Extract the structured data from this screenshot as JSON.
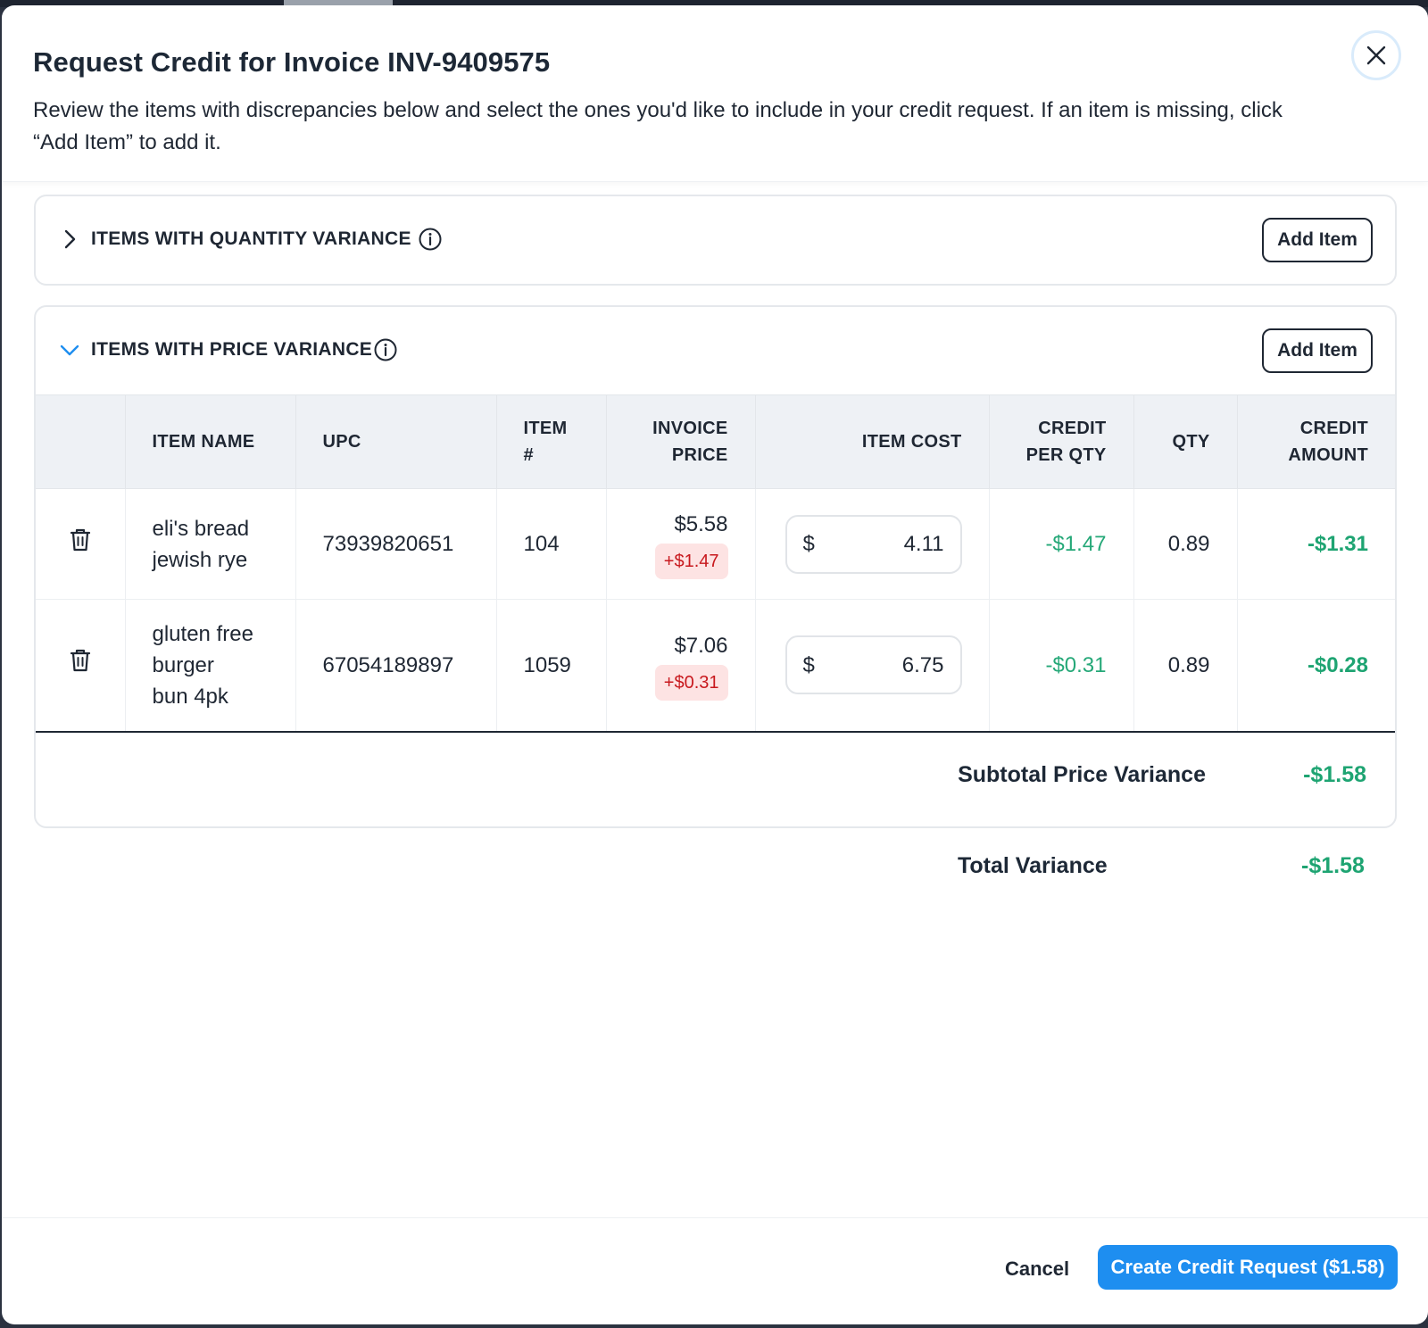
{
  "modal": {
    "title": "Request Credit for Invoice INV-9409575",
    "subtitle": "Review the items with discrepancies below and select the ones you'd like to include in your credit request. If an item is missing, click “Add Item” to add it."
  },
  "sections": {
    "quantity": {
      "title": "ITEMS WITH QUANTITY VARIANCE",
      "add_label": "Add Item",
      "expanded": false
    },
    "price": {
      "title": "ITEMS WITH PRICE VARIANCE",
      "add_label": "Add Item",
      "expanded": true
    }
  },
  "table": {
    "headers": {
      "item_name": "ITEM NAME",
      "upc": "UPC",
      "item_no_1": "ITEM",
      "item_no_2": "#",
      "invoice_price_1": "INVOICE",
      "invoice_price_2": "PRICE",
      "item_cost": "ITEM COST",
      "credit_per_qty_1": "CREDIT",
      "credit_per_qty_2": "PER QTY",
      "qty": "QTY",
      "credit_amount_1": "CREDIT",
      "credit_amount_2": "AMOUNT"
    },
    "rows": [
      {
        "name_1": "eli's bread",
        "name_2": "jewish rye",
        "upc": "73939820651",
        "item_no": "104",
        "invoice_price": "$5.58",
        "price_variance": "+$1.47",
        "currency": "$",
        "item_cost": "4.11",
        "credit_per_qty": "-$1.47",
        "qty": "0.89",
        "credit_amount": "-$1.31"
      },
      {
        "name_1": "gluten free",
        "name_2": "burger",
        "name_3": "bun 4pk",
        "upc": "67054189897",
        "item_no": "1059",
        "invoice_price": "$7.06",
        "price_variance": "+$0.31",
        "currency": "$",
        "item_cost": "6.75",
        "credit_per_qty": "-$0.31",
        "qty": "0.89",
        "credit_amount": "-$0.28"
      }
    ]
  },
  "subtotal": {
    "label": "Subtotal Price Variance",
    "value": "-$1.58"
  },
  "total": {
    "label": "Total Variance",
    "value": "-$1.58"
  },
  "footer": {
    "cancel_label": "Cancel",
    "create_label": "Create Credit Request ($1.58)"
  },
  "colors": {
    "accent": "#1e8ef0",
    "credit_green": "#1ea472",
    "variance_red": "#c8191e",
    "variance_bg": "#fde3e3"
  },
  "icons": [
    "close-icon",
    "chevron-right-icon",
    "chevron-down-icon",
    "info-icon",
    "trash-icon"
  ]
}
